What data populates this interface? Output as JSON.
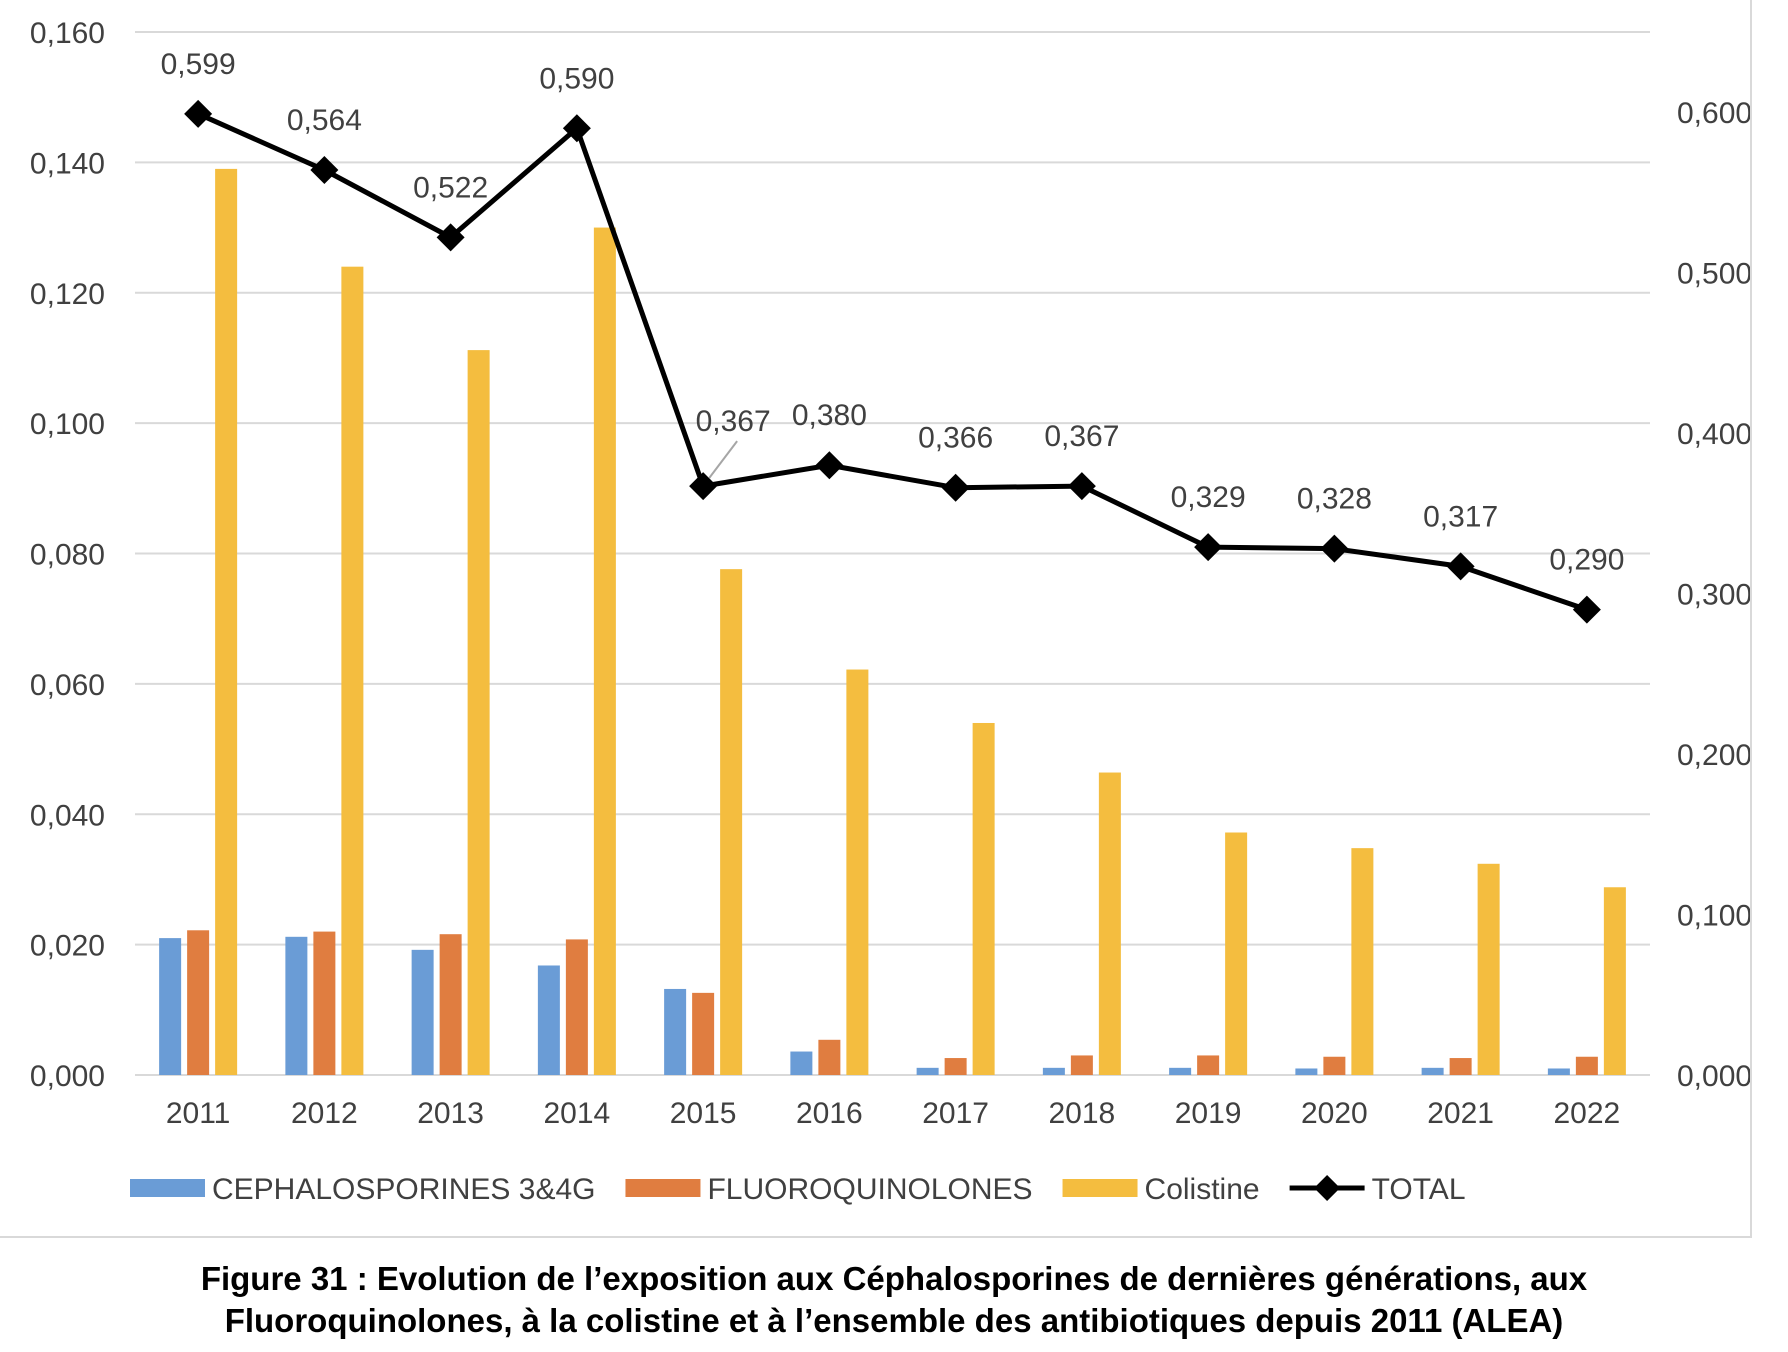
{
  "chart_data": {
    "type": "bar",
    "categories": [
      "2011",
      "2012",
      "2013",
      "2014",
      "2015",
      "2016",
      "2017",
      "2018",
      "2019",
      "2020",
      "2021",
      "2022"
    ],
    "series": [
      {
        "name": "CEPHALOSPORINES 3&4G",
        "type": "bar",
        "axis": "left",
        "color": "#6a9cd6",
        "values": [
          0.021,
          0.0212,
          0.0192,
          0.0168,
          0.0132,
          0.0036,
          0.0011,
          0.0011,
          0.0011,
          0.001,
          0.0011,
          0.001
        ]
      },
      {
        "name": "FLUOROQUINOLONES",
        "type": "bar",
        "axis": "left",
        "color": "#e07d40",
        "values": [
          0.0222,
          0.022,
          0.0216,
          0.0208,
          0.0126,
          0.0054,
          0.0026,
          0.003,
          0.003,
          0.0028,
          0.0026,
          0.0028
        ]
      },
      {
        "name": "Colistine",
        "type": "bar",
        "axis": "left",
        "color": "#f4bd3f",
        "values": [
          0.139,
          0.124,
          0.1112,
          0.13,
          0.0776,
          0.0622,
          0.054,
          0.0464,
          0.0372,
          0.0348,
          0.0324,
          0.0288
        ]
      },
      {
        "name": "TOTAL",
        "type": "line",
        "axis": "right",
        "color": "#000000",
        "values": [
          0.599,
          0.564,
          0.522,
          0.59,
          0.367,
          0.38,
          0.366,
          0.367,
          0.329,
          0.328,
          0.317,
          0.29
        ],
        "labels": [
          "0,599",
          "0,564",
          "0,522",
          "0,590",
          "0,367",
          "0,380",
          "0,366",
          "0,367",
          "0,329",
          "0,328",
          "0,317",
          "0,290"
        ]
      }
    ],
    "y_left": {
      "min": 0,
      "max": 0.16,
      "ticks": [
        "0,000",
        "0,020",
        "0,040",
        "0,060",
        "0,080",
        "0,100",
        "0,120",
        "0,140",
        "0,160"
      ]
    },
    "y_right": {
      "min": 0,
      "max": 0.65,
      "ticks": [
        "0,000",
        "0,100",
        "0,200",
        "0,300",
        "0,400",
        "0,500",
        "0,600"
      ]
    },
    "grid": true,
    "legend_position": "bottom"
  },
  "caption": {
    "line1": "Figure 31 : Evolution de l’exposition aux Céphalosporines de dernières générations, aux",
    "line2": "Fluoroquinolones, à la colistine et à l’ensemble des antibiotiques depuis 2011 (ALEA)"
  }
}
